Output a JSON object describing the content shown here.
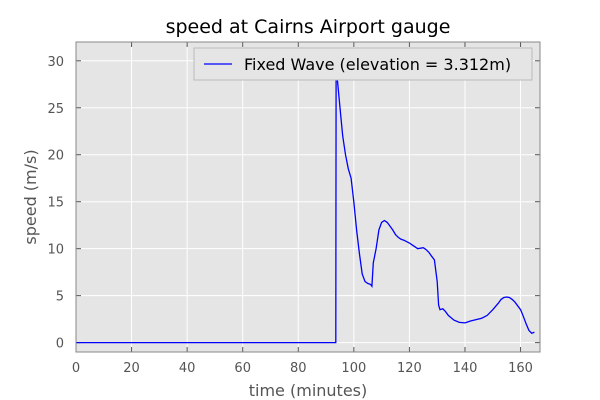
{
  "chart_data": {
    "type": "line",
    "title": "speed at Cairns Airport gauge",
    "xlabel": "time (minutes)",
    "ylabel": "speed (m/s)",
    "xlim": [
      0,
      167
    ],
    "ylim": [
      -1,
      32
    ],
    "xticks": [
      0,
      20,
      40,
      60,
      80,
      100,
      120,
      140,
      160
    ],
    "yticks": [
      0,
      5,
      10,
      15,
      20,
      25,
      30
    ],
    "grid": true,
    "legend_position": "top-right",
    "background_color": "#e5e5e5",
    "series": [
      {
        "name": "Fixed Wave (elevation = 3.312m)",
        "color": "#0000ff",
        "points": [
          [
            0,
            0
          ],
          [
            93.5,
            0
          ],
          [
            93.6,
            28.5
          ],
          [
            94,
            28.2
          ],
          [
            95,
            25
          ],
          [
            96,
            22
          ],
          [
            97,
            20
          ],
          [
            98,
            18.5
          ],
          [
            99,
            17.5
          ],
          [
            100,
            15
          ],
          [
            101,
            12
          ],
          [
            102,
            9.5
          ],
          [
            103,
            7.3
          ],
          [
            104,
            6.5
          ],
          [
            105,
            6.3
          ],
          [
            106,
            6.2
          ],
          [
            106.5,
            6.0
          ],
          [
            107,
            8.5
          ],
          [
            108,
            10
          ],
          [
            109,
            12
          ],
          [
            110,
            12.8
          ],
          [
            111,
            13
          ],
          [
            112,
            12.8
          ],
          [
            113,
            12.4
          ],
          [
            114,
            12
          ],
          [
            115,
            11.5
          ],
          [
            116,
            11.2
          ],
          [
            117,
            11
          ],
          [
            118,
            10.9
          ],
          [
            120,
            10.6
          ],
          [
            121,
            10.4
          ],
          [
            122,
            10.2
          ],
          [
            123,
            10.0
          ],
          [
            125,
            10.1
          ],
          [
            126,
            9.9
          ],
          [
            127,
            9.6
          ],
          [
            128,
            9.2
          ],
          [
            129,
            8.8
          ],
          [
            130,
            6.5
          ],
          [
            130.5,
            4.0
          ],
          [
            131,
            3.5
          ],
          [
            132,
            3.6
          ],
          [
            133,
            3.3
          ],
          [
            134,
            2.9
          ],
          [
            136,
            2.4
          ],
          [
            138,
            2.15
          ],
          [
            140,
            2.1
          ],
          [
            142,
            2.3
          ],
          [
            144,
            2.45
          ],
          [
            146,
            2.6
          ],
          [
            148,
            2.9
          ],
          [
            150,
            3.5
          ],
          [
            152,
            4.2
          ],
          [
            153,
            4.6
          ],
          [
            154,
            4.8
          ],
          [
            155,
            4.85
          ],
          [
            156,
            4.8
          ],
          [
            157,
            4.6
          ],
          [
            158,
            4.3
          ],
          [
            160,
            3.5
          ],
          [
            161,
            2.8
          ],
          [
            162,
            2.0
          ],
          [
            163,
            1.3
          ],
          [
            164,
            1.0
          ],
          [
            165,
            1.1
          ]
        ]
      }
    ]
  }
}
